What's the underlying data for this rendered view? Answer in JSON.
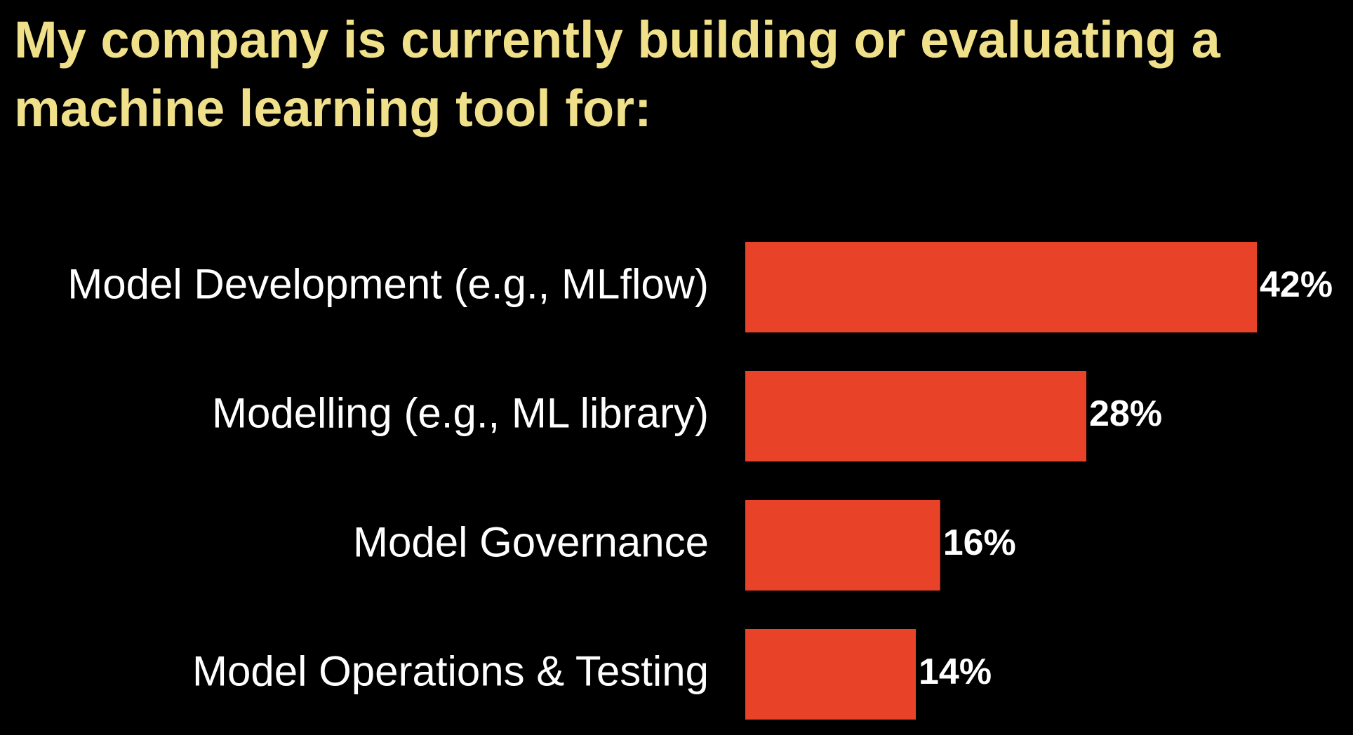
{
  "chart_data": {
    "type": "bar",
    "orientation": "horizontal",
    "title": "My company is currently building or evaluating a machine learning tool for:",
    "categories": [
      "Model Development  (e.g., MLflow)",
      "Modelling (e.g., ML library)",
      "Model Governance",
      "Model Operations & Testing"
    ],
    "values": [
      42,
      28,
      16,
      14
    ],
    "value_labels": [
      "42%",
      "28%",
      "16%",
      "14%"
    ],
    "unit": "%",
    "xlim": [
      0,
      42
    ],
    "grid": false,
    "legend": "none",
    "colors": {
      "bar": "#e84229",
      "title": "#f0e08a",
      "text": "#ffffff",
      "background": "#000000"
    }
  }
}
